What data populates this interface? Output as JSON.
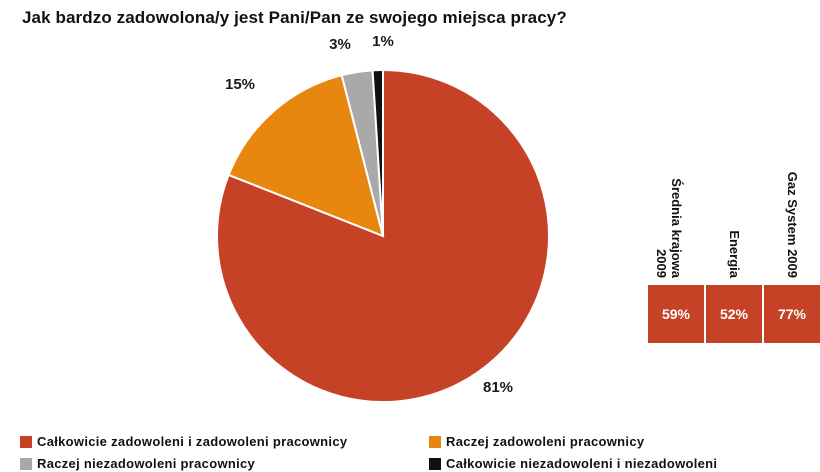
{
  "chart_data": {
    "type": "pie",
    "title": "Jak bardzo zadowolona/y jest Pani/Pan ze swojego miejsca pracy?",
    "slices": [
      {
        "label": "Całkowicie zadowoleni i zadowoleni pracownicy",
        "value": 81,
        "display": "81%",
        "color": "#c54226"
      },
      {
        "label": "Raczej zadowoleni pracownicy",
        "value": 15,
        "display": "15%",
        "color": "#e8870f"
      },
      {
        "label": "Raczej niezadowoleni pracownicy",
        "value": 3,
        "display": "3%",
        "color": "#a9a9a9"
      },
      {
        "label": "Całkowicie niezadowoleni i niezadowoleni",
        "value": 1,
        "display": "1%",
        "color": "#111111"
      }
    ],
    "comparison": [
      {
        "label": "Średnia krajowa\n2009",
        "value": "59%"
      },
      {
        "label": "Energia",
        "value": "52%"
      },
      {
        "label": "Gaz System 2009",
        "value": "77%"
      }
    ]
  }
}
